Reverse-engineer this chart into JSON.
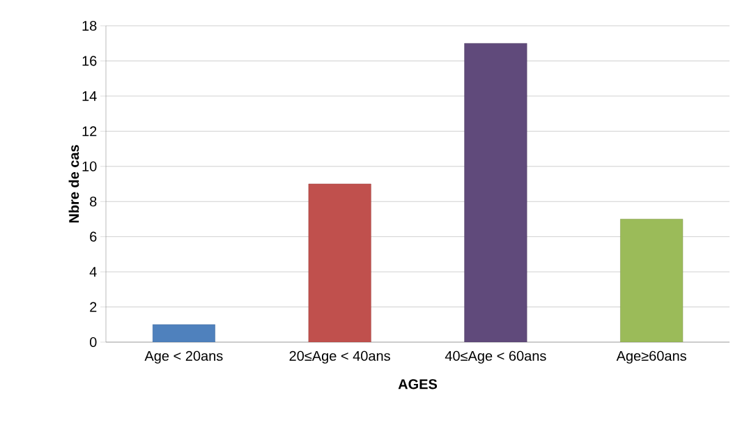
{
  "chart_data": {
    "type": "bar",
    "xlabel": "AGES",
    "ylabel": "Nbre de cas",
    "categories": [
      "Age < 20ans",
      "20≤Age < 40ans",
      "40≤Age < 60ans",
      "Age≥60ans"
    ],
    "values": [
      1,
      9,
      17,
      7
    ],
    "colors": [
      "#4f81bd",
      "#c0504d",
      "#604a7b",
      "#9bbb59"
    ],
    "ylim": [
      0,
      18
    ],
    "yticks": [
      0,
      2,
      4,
      6,
      8,
      10,
      12,
      14,
      16,
      18
    ],
    "grid": "y"
  }
}
